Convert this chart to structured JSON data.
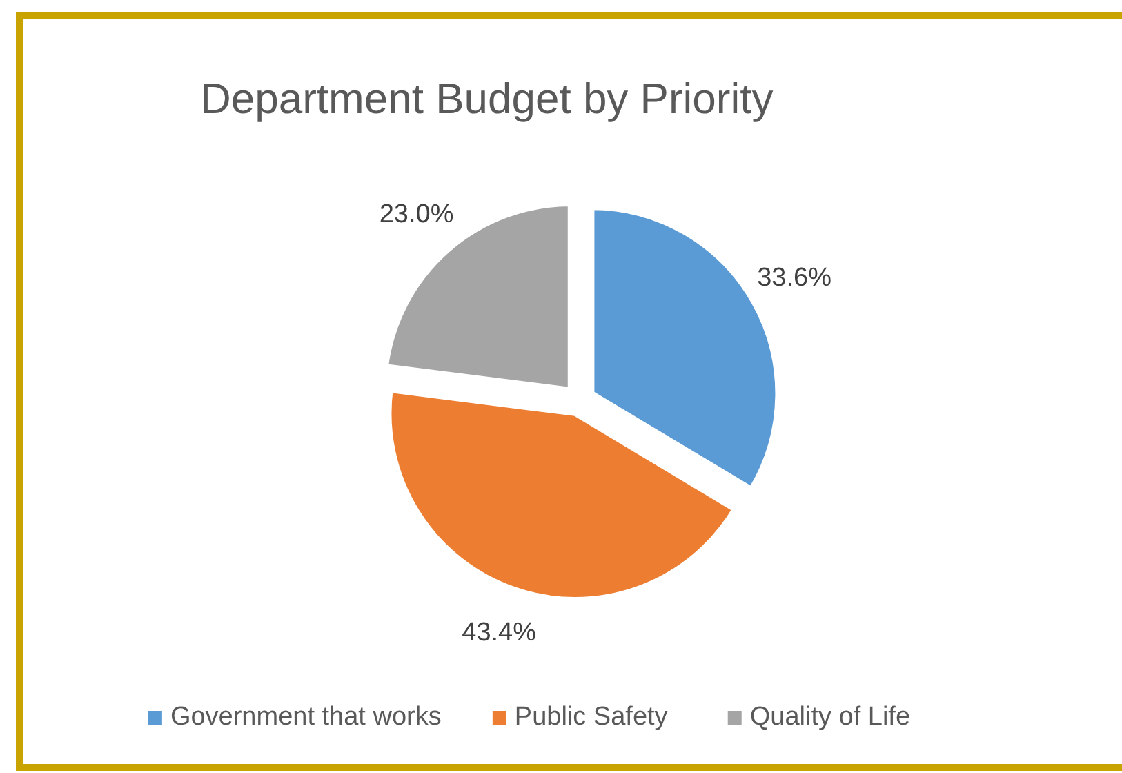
{
  "chart_data": {
    "type": "pie",
    "title": "Department Budget by Priority",
    "categories": [
      "Government that works",
      "Public Safety",
      "Quality of Life"
    ],
    "values": [
      33.6,
      43.4,
      23.0
    ],
    "colors": [
      "#5b9bd5",
      "#ed7d31",
      "#a5a5a5"
    ],
    "value_labels": [
      "33.6%",
      "43.4%",
      "23.0%"
    ],
    "legend": "bottom"
  }
}
